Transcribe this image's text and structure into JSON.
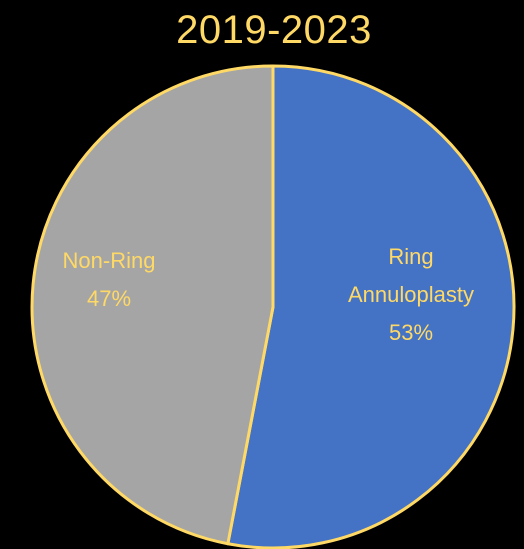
{
  "chart_data": {
    "type": "pie",
    "title": "2019-2023",
    "slices": [
      {
        "name": "Ring Annuloplasty",
        "label_lines": [
          "Ring",
          "Annuloplasty",
          "53%"
        ],
        "value": 53,
        "color": "#4472C4"
      },
      {
        "name": "Non-Ring",
        "label_lines": [
          "Non-Ring",
          "47%"
        ],
        "value": 47,
        "color": "#A5A5A5"
      }
    ],
    "start_angle_deg": 0,
    "direction": "clockwise",
    "border_color": "#FFD966",
    "text_color": "#FFD966",
    "legend": "none"
  }
}
